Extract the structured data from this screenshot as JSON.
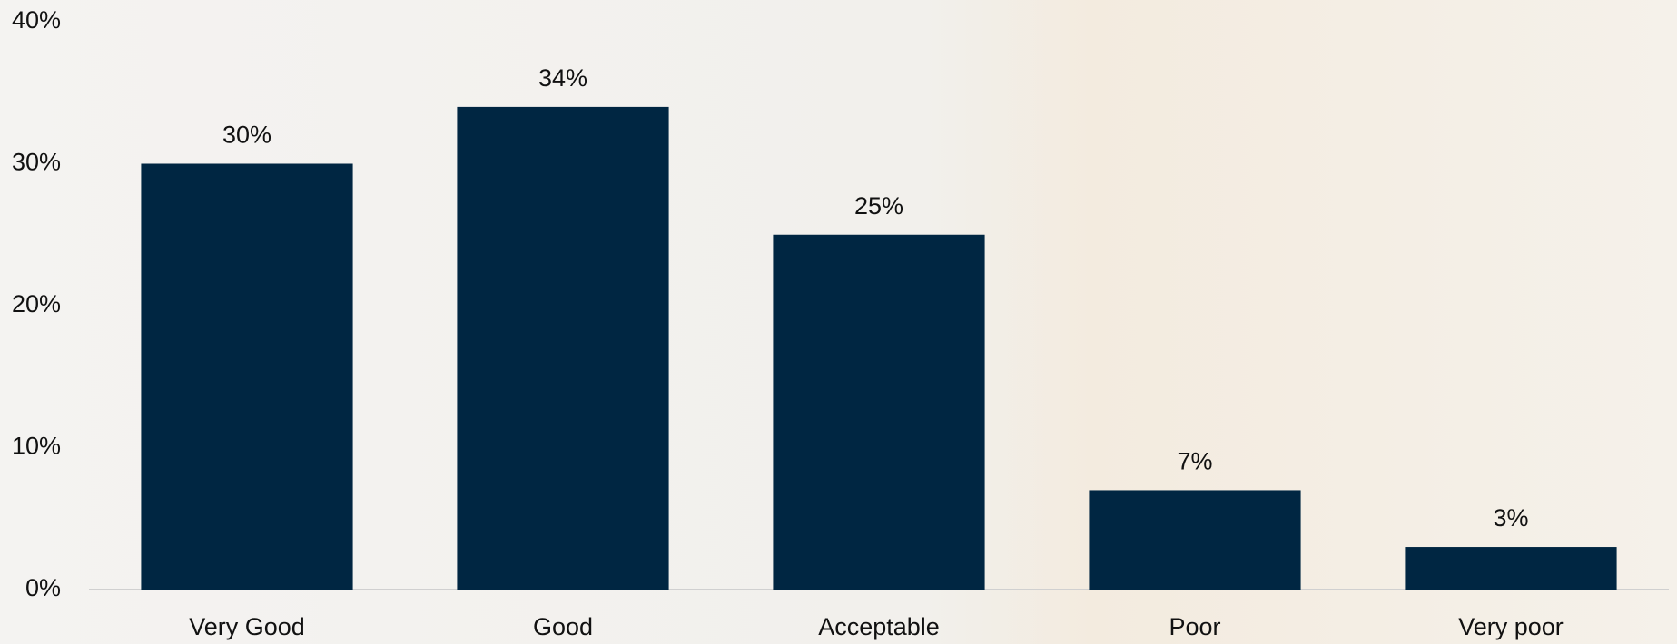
{
  "chart_data": {
    "type": "bar",
    "categories": [
      "Very Good",
      "Good",
      "Acceptable",
      "Poor",
      "Very poor"
    ],
    "values": [
      30,
      34,
      25,
      7,
      3
    ],
    "value_labels": [
      "30%",
      "34%",
      "25%",
      "7%",
      "3%"
    ],
    "color": "#002642",
    "ylim": [
      0,
      40
    ],
    "yticks": [
      {
        "value": 0,
        "label": "0%"
      },
      {
        "value": 10,
        "label": "10%"
      },
      {
        "value": 20,
        "label": "20%"
      },
      {
        "value": 30,
        "label": "30%"
      },
      {
        "value": 40,
        "label": "40%"
      }
    ],
    "grid": false
  }
}
